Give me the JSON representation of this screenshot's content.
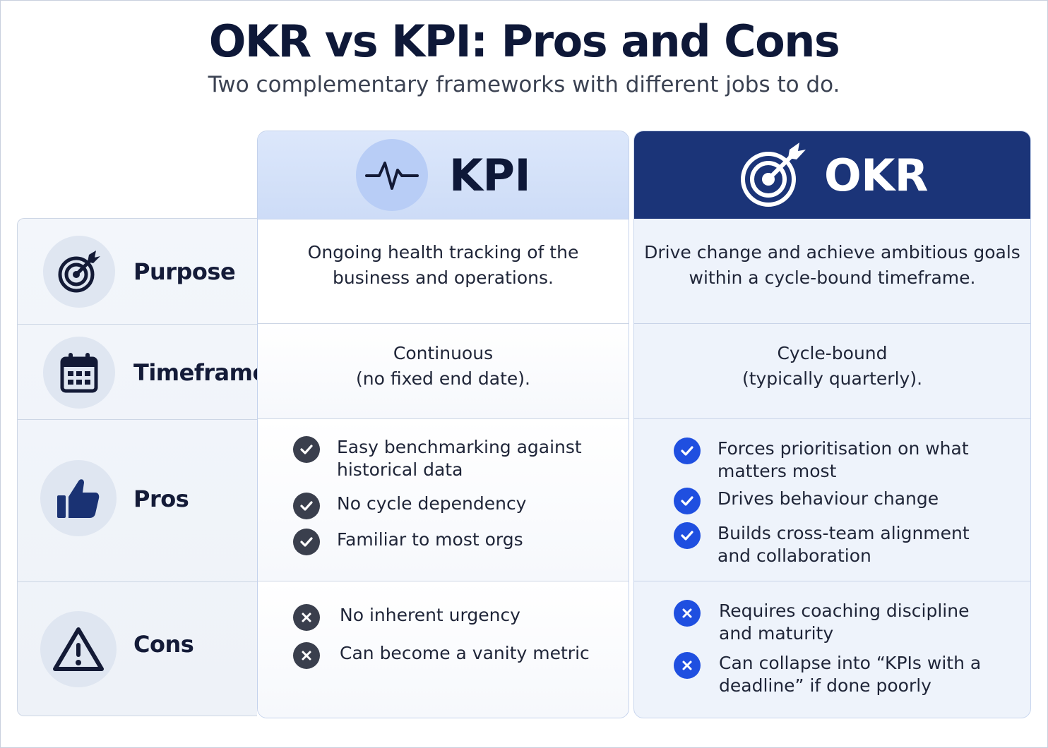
{
  "header": {
    "title": "OKR vs KPI: Pros and Cons",
    "subtitle": "Two complementary frameworks with different jobs to do."
  },
  "rows": [
    {
      "label": "Purpose",
      "icon": "target-icon"
    },
    {
      "label": "Timeframe",
      "icon": "calendar-icon"
    },
    {
      "label": "Pros",
      "icon": "thumbs-up-icon"
    },
    {
      "label": "Cons",
      "icon": "warning-icon"
    }
  ],
  "kpi": {
    "label": "KPI",
    "icon": "heartbeat-icon",
    "purpose": [
      "Ongoing health tracking of the",
      "business and operations."
    ],
    "timeframe": [
      "Continuous",
      "(no fixed end date)."
    ],
    "pros": [
      [
        "Easy benchmarking against",
        "historical data"
      ],
      [
        "No cycle dependency"
      ],
      [
        "Familiar to most orgs"
      ]
    ],
    "cons": [
      [
        "No inherent urgency"
      ],
      [
        "Can become a vanity metric"
      ]
    ]
  },
  "okr": {
    "label": "OKR",
    "icon": "target-arrow-icon",
    "purpose": [
      "Drive change and achieve ambitious goals",
      "within a cycle-bound timeframe."
    ],
    "timeframe": [
      "Cycle-bound",
      "(typically quarterly)."
    ],
    "pros": [
      [
        "Forces prioritisation on what",
        "matters most"
      ],
      [
        "Drives behaviour change"
      ],
      [
        "Builds cross-team alignment",
        "and collaboration"
      ]
    ],
    "cons": [
      [
        "Requires coaching discipline",
        "and maturity"
      ],
      [
        "Can collapse into “KPIs with a",
        "deadline” if done poorly"
      ]
    ]
  },
  "colors": {
    "navy": "#1b3478",
    "accent_blue": "#1f4fe0",
    "dark_badge": "#3a3f4d"
  }
}
